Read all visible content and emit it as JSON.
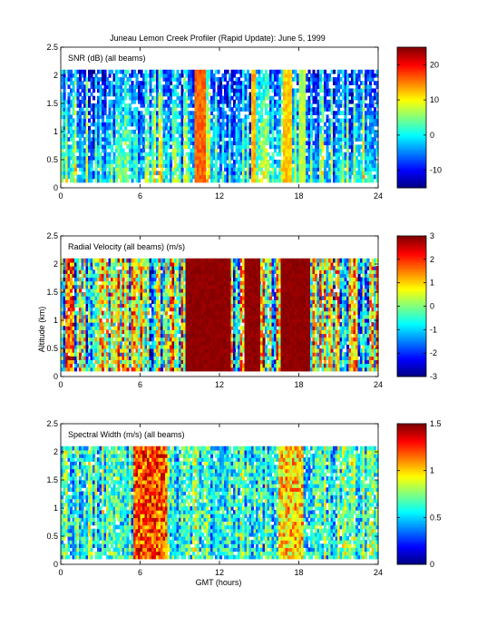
{
  "figure": {
    "title": "Juneau Lemon Creek Profiler (Rapid Update):      June  5, 1999",
    "xlabel": "GMT (hours)",
    "ylabel": "Altitude (km)"
  },
  "chart_data": [
    {
      "type": "heatmap",
      "label": "SNR (dB) (all beams)",
      "xlim": [
        0,
        24
      ],
      "ylim": [
        0,
        2.5
      ],
      "xticks": [
        "0",
        "6",
        "12",
        "18",
        "24"
      ],
      "yticks": [
        "0",
        "0.5",
        "1",
        "1.5",
        "2",
        "2.5"
      ],
      "data_extent": {
        "x": [
          0,
          24
        ],
        "y": [
          0.1,
          2.1
        ]
      },
      "colorbar": {
        "range": [
          -15,
          25
        ],
        "ticks": [
          "-10",
          "0",
          "10",
          "20"
        ]
      },
      "bands": [
        {
          "x": [
            10.2,
            11.0
          ],
          "value": 18
        },
        {
          "x": [
            14.4,
            14.7
          ],
          "value": 15
        },
        {
          "x": [
            16.8,
            17.5
          ],
          "value": 14
        },
        {
          "x": [
            18.0,
            18.5
          ],
          "value": 9
        }
      ]
    },
    {
      "type": "heatmap",
      "label": "Radial Velocity (all beams) (m/s)",
      "xlim": [
        0,
        24
      ],
      "ylim": [
        0,
        2.5
      ],
      "xticks": [
        "0",
        "6",
        "12",
        "18",
        "24"
      ],
      "yticks": [
        "0",
        "0.5",
        "1",
        "1.5",
        "2",
        "2.5"
      ],
      "data_extent": {
        "x": [
          0,
          24
        ],
        "y": [
          0.1,
          2.1
        ]
      },
      "colorbar": {
        "range": [
          -3,
          3
        ],
        "ticks": [
          "-3",
          "-2",
          "-1",
          "0",
          "1",
          "2",
          "3"
        ]
      },
      "bands": [
        {
          "x": [
            9.5,
            12.8
          ],
          "value": 3
        },
        {
          "x": [
            13.8,
            15.0
          ],
          "value": 3
        },
        {
          "x": [
            16.6,
            18.9
          ],
          "value": 3
        }
      ]
    },
    {
      "type": "heatmap",
      "label": "Spectral Width (m/s) (all beams)",
      "xlim": [
        0,
        24
      ],
      "ylim": [
        0,
        2.5
      ],
      "xticks": [
        "0",
        "6",
        "12",
        "18",
        "24"
      ],
      "yticks": [
        "0",
        "0.5",
        "1",
        "1.5",
        "2",
        "2.5"
      ],
      "data_extent": {
        "x": [
          0,
          24
        ],
        "y": [
          0.1,
          2.1
        ]
      },
      "colorbar": {
        "range": [
          0,
          1.5
        ],
        "ticks": [
          "0",
          "0.5",
          "1",
          "1.5"
        ]
      },
      "bands": [
        {
          "x": [
            5.5,
            8.0
          ],
          "value": 1.2
        },
        {
          "x": [
            16.5,
            18.3
          ],
          "value": 1.0
        }
      ]
    }
  ]
}
